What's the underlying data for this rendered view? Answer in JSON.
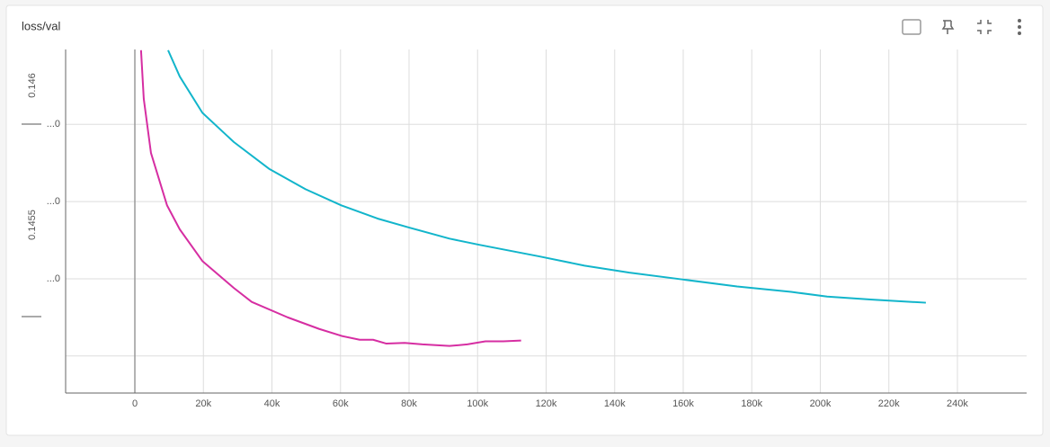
{
  "chart_data": {
    "type": "line",
    "title": "loss/val",
    "annotations": [
      "0.146",
      "0.1455"
    ],
    "xlim": [
      -20200,
      260200
    ],
    "xticks": [
      {
        "value": 0,
        "label": "0"
      },
      {
        "value": 20000,
        "label": "20k"
      },
      {
        "value": 40000,
        "label": "40k"
      },
      {
        "value": 60000,
        "label": "60k"
      },
      {
        "value": 80000,
        "label": "80k"
      },
      {
        "value": 100000,
        "label": "100k"
      },
      {
        "value": 120000,
        "label": "120k"
      },
      {
        "value": 140000,
        "label": "140k"
      },
      {
        "value": 160000,
        "label": "160k"
      },
      {
        "value": 180000,
        "label": "180k"
      },
      {
        "value": 200000,
        "label": "200k"
      },
      {
        "value": 220000,
        "label": "220k"
      },
      {
        "value": 240000,
        "label": "240k"
      }
    ],
    "ylim": [
      0.145552,
      0.145997
    ],
    "yticks": [
      {
        "value": 0.1459,
        "label": "...0"
      },
      {
        "value": 0.1458,
        "label": "...0"
      },
      {
        "value": 0.1457,
        "label": "...0"
      },
      {
        "value": 0.1456,
        "label": ""
      }
    ],
    "grid": true,
    "series": [
      {
        "color": "#d62ea2",
        "x": [
          1800,
          2600,
          4700,
          9400,
          13100,
          19700,
          28900,
          34100,
          44600,
          53800,
          60300,
          65600,
          69500,
          73400,
          78700,
          83900,
          91800,
          97000,
          102300,
          107500,
          112700
        ],
        "values": [
          0.145996,
          0.145933,
          0.145863,
          0.145795,
          0.145764,
          0.145723,
          0.145688,
          0.14567,
          0.14565,
          0.145635,
          0.145626,
          0.145621,
          0.145621,
          0.145616,
          0.145617,
          0.145615,
          0.145613,
          0.145615,
          0.145619,
          0.145619,
          0.14562
        ]
      },
      {
        "color": "#12b5cb",
        "x": [
          9700,
          13100,
          19700,
          28900,
          39300,
          49800,
          60300,
          70800,
          80300,
          91800,
          100500,
          118000,
          131200,
          144300,
          160000,
          175700,
          191500,
          202000,
          215100,
          230800
        ],
        "values": [
          0.145996,
          0.145962,
          0.145915,
          0.145877,
          0.145842,
          0.145816,
          0.145795,
          0.145778,
          0.145766,
          0.145752,
          0.145744,
          0.145729,
          0.145717,
          0.145708,
          0.145699,
          0.14569,
          0.145683,
          0.145677,
          0.145673,
          0.145669
        ]
      }
    ]
  }
}
